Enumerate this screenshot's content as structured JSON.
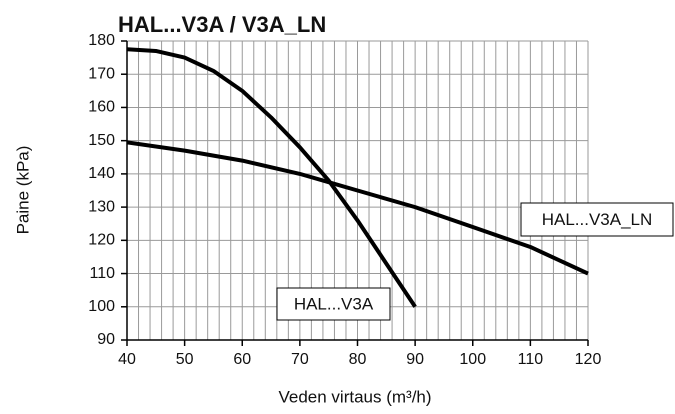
{
  "chart_data": {
    "type": "line",
    "title": "HAL...V3A / V3A_LN",
    "xlabel": "Veden virtaus (m³/h)",
    "ylabel": "Paine (kPa)",
    "xlim": [
      40,
      120
    ],
    "ylim": [
      90,
      180
    ],
    "xticks": [
      40,
      50,
      60,
      70,
      80,
      90,
      100,
      110,
      120
    ],
    "xminorticks": [
      42,
      44,
      46,
      48,
      52,
      54,
      56,
      58,
      62,
      64,
      66,
      68,
      72,
      74,
      76,
      78,
      82,
      84,
      86,
      88,
      92,
      94,
      96,
      98,
      102,
      104,
      106,
      108,
      112,
      114,
      116,
      118
    ],
    "yticks": [
      90,
      100,
      110,
      120,
      130,
      140,
      150,
      160,
      170,
      180
    ],
    "grid": true,
    "series": [
      {
        "name": "HAL...V3A",
        "color": "#000000",
        "x": [
          40,
          45,
          50,
          55,
          60,
          65,
          70,
          75,
          80,
          85,
          90
        ],
        "values": [
          177.5,
          177,
          175,
          171,
          165,
          157,
          148,
          138,
          126,
          113,
          100
        ]
      },
      {
        "name": "HAL...V3A_LN",
        "color": "#000000",
        "x": [
          40,
          50,
          60,
          70,
          75,
          80,
          90,
          100,
          110,
          120
        ],
        "values": [
          149.5,
          147,
          144,
          140,
          137.5,
          135,
          130,
          124,
          118,
          110
        ]
      }
    ]
  }
}
